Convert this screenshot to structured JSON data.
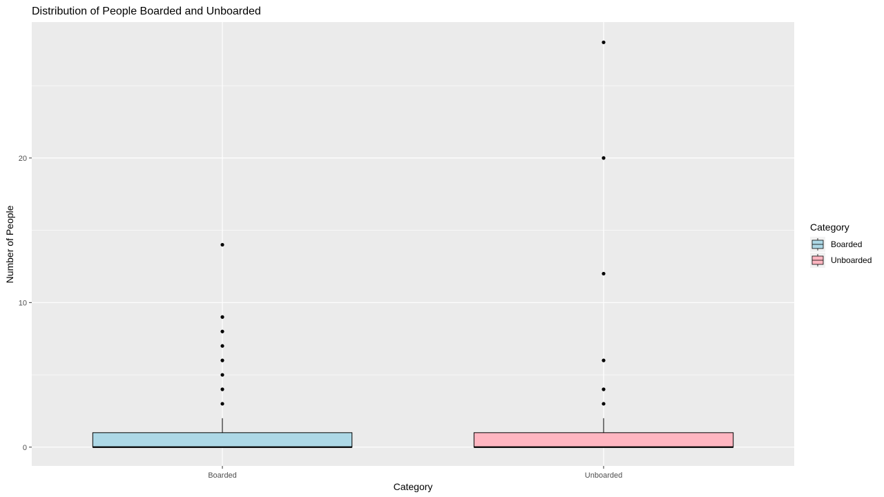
{
  "chart_data": {
    "type": "box",
    "title": "Distribution of People Boarded and Unboarded",
    "xlabel": "Category",
    "ylabel": "Number of People",
    "categories": [
      "Boarded",
      "Unboarded"
    ],
    "ylim": [
      -1.3,
      29.4
    ],
    "yticks": [
      0,
      10,
      20
    ],
    "grid": true,
    "legend": {
      "title": "Category",
      "position": "right",
      "entries": [
        "Boarded",
        "Unboarded"
      ]
    },
    "series": [
      {
        "name": "Boarded",
        "color": "#add8e6",
        "min": 0,
        "q1": 0,
        "median": 0,
        "q3": 1,
        "max": 2,
        "outliers": [
          3,
          4,
          5,
          6,
          7,
          8,
          9,
          14
        ]
      },
      {
        "name": "Unboarded",
        "color": "#ffb6c1",
        "min": 0,
        "q1": 0,
        "median": 0,
        "q3": 1,
        "max": 2,
        "outliers": [
          3,
          4,
          6,
          12,
          20,
          28
        ]
      }
    ],
    "panel_background": "#ebebeb",
    "grid_color": "#ffffff"
  }
}
